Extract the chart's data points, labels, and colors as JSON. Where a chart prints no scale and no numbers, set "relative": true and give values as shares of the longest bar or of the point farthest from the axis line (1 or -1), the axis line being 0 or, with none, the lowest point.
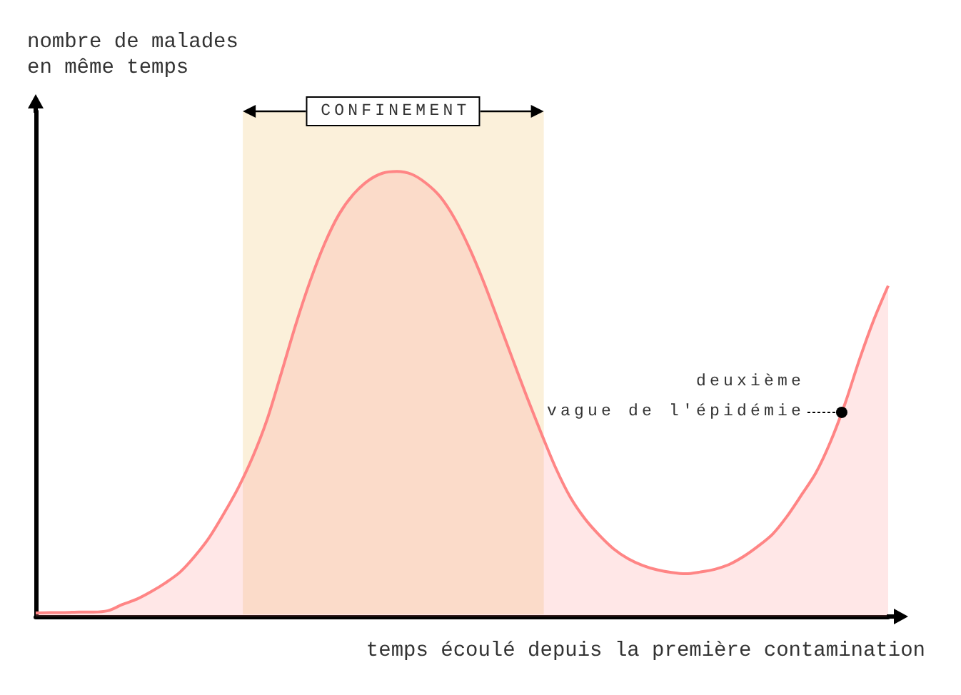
{
  "chart_data": {
    "type": "area",
    "relative": true,
    "ylabel": "nombre de malades\nen même temps",
    "xlabel": "temps écoulé depuis la première contamination",
    "categories": [
      null,
      null,
      null,
      null,
      null,
      null,
      null,
      null,
      null,
      null,
      null,
      null,
      null,
      null,
      null,
      null,
      null,
      null,
      null,
      null,
      null,
      null,
      null,
      null,
      null,
      null,
      null,
      null,
      null,
      null,
      null,
      null,
      null,
      null,
      null,
      null,
      null,
      null,
      null,
      null,
      null,
      null,
      null,
      null,
      null,
      null,
      null,
      null,
      null,
      null,
      null,
      null,
      null,
      null,
      null,
      null,
      null,
      null,
      null,
      null
    ],
    "values": [
      0.008,
      0.009,
      0.009,
      0.01,
      0.01,
      0.013,
      0.027,
      0.039,
      0.056,
      0.076,
      0.1,
      0.135,
      0.177,
      0.23,
      0.288,
      0.357,
      0.441,
      0.547,
      0.656,
      0.754,
      0.838,
      0.904,
      0.949,
      0.979,
      0.996,
      1.0,
      0.994,
      0.974,
      0.943,
      0.894,
      0.829,
      0.752,
      0.666,
      0.579,
      0.493,
      0.411,
      0.333,
      0.268,
      0.22,
      0.183,
      0.152,
      0.13,
      0.115,
      0.105,
      0.099,
      0.096,
      0.1,
      0.106,
      0.117,
      0.135,
      0.158,
      0.185,
      0.225,
      0.273,
      0.323,
      0.392,
      0.477,
      0.576,
      0.666,
      0.743
    ],
    "color": "#ff8585",
    "annotations": [
      "CONFINEMENT",
      "deuxième\nvague de l'épidémie"
    ],
    "marker": "none"
  }
}
